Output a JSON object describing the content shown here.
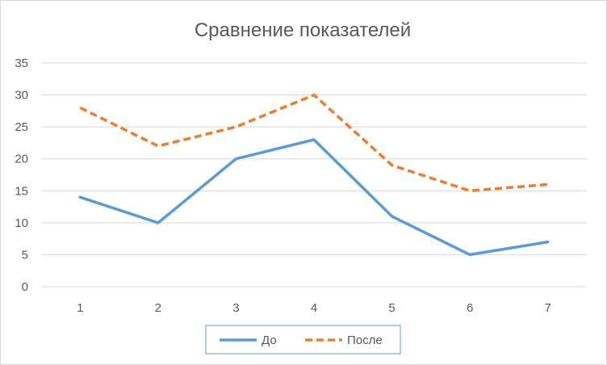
{
  "chart_data": {
    "type": "line",
    "title": "Сравнение показателей",
    "xlabel": "",
    "ylabel": "",
    "categories": [
      "1",
      "2",
      "3",
      "4",
      "5",
      "6",
      "7"
    ],
    "y_ticks": [
      "0",
      "5",
      "10",
      "15",
      "20",
      "25",
      "30",
      "35"
    ],
    "ylim": [
      0,
      35
    ],
    "grid": true,
    "legend_position": "bottom",
    "series": [
      {
        "name": "До",
        "values": [
          14,
          10,
          20,
          23,
          11,
          5,
          7
        ],
        "color": "#5b9bd5",
        "style": "solid"
      },
      {
        "name": "После",
        "values": [
          28,
          22,
          25,
          30,
          19,
          15,
          16
        ],
        "color": "#ed7d31",
        "style": "dashed"
      }
    ]
  },
  "colors": {
    "grid": "#d9d9d9",
    "text": "#595959",
    "border": "#d9d9d9"
  }
}
